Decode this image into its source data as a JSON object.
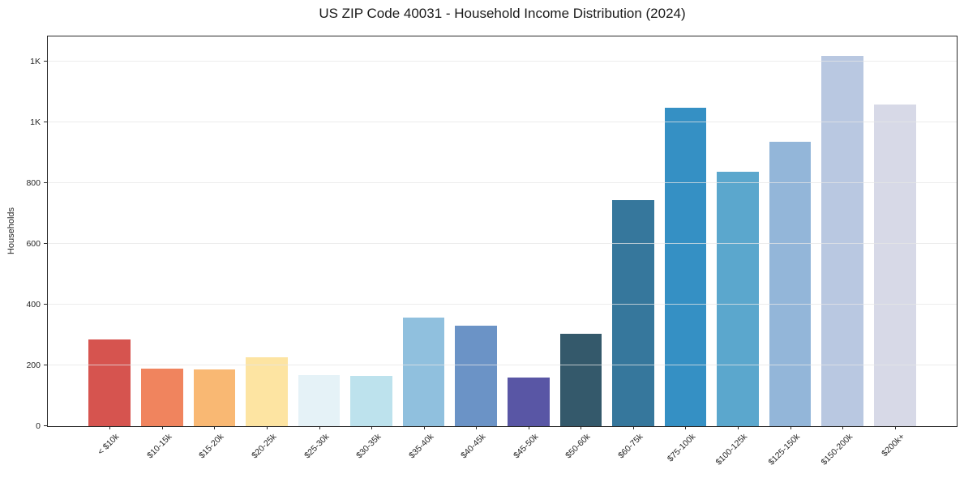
{
  "title": "US ZIP Code 40031 - Household Income Distribution (2024)",
  "chart_data": {
    "type": "bar",
    "title": "US ZIP Code 40031 - Household Income Distribution (2024)",
    "xlabel": "",
    "ylabel": "Households",
    "ylim": [
      0,
      1283
    ],
    "grid": true,
    "legend": "none",
    "categories": [
      "< $10k",
      "$10-15k",
      "$15-20k",
      "$20-25k",
      "$25-30k",
      "$30-35k",
      "$35-40k",
      "$40-45k",
      "$45-50k",
      "$50-60k",
      "$60-75k",
      "$75-100k",
      "$100-125k",
      "$125-150k",
      "$150-200k",
      "$200k+"
    ],
    "values": [
      285,
      190,
      187,
      227,
      168,
      165,
      357,
      330,
      160,
      305,
      744,
      1049,
      837,
      935,
      1218,
      1060
    ],
    "bar_colors": [
      "#d6544f",
      "#f0845e",
      "#f9b873",
      "#fde4a2",
      "#e5f2f7",
      "#bde2ed",
      "#90c0de",
      "#6b93c6",
      "#5956a5",
      "#34596b",
      "#36779c",
      "#3590c4",
      "#5ba7cd",
      "#93b6d9",
      "#b9c8e1",
      "#d7d9e7"
    ],
    "y_ticks": [
      {
        "value": 0,
        "label": "0"
      },
      {
        "value": 200,
        "label": "200"
      },
      {
        "value": 400,
        "label": "400"
      },
      {
        "value": 600,
        "label": "600"
      },
      {
        "value": 800,
        "label": "800"
      },
      {
        "value": 1000,
        "label": "1K"
      },
      {
        "value": 1200,
        "label": "1K"
      }
    ]
  },
  "colors": {
    "background": "#ffffff",
    "gridline": "#e5e5e5",
    "spine": "#2a2a2a",
    "text": "#262626"
  }
}
